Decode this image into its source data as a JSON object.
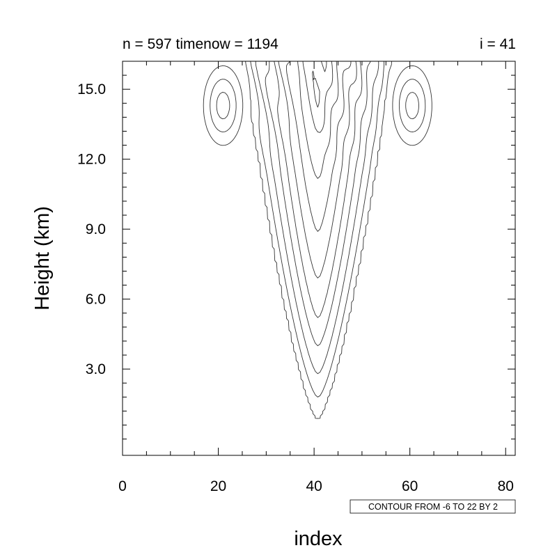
{
  "chart_data": {
    "type": "contour",
    "title_left": "n = 597  timenow = 1194",
    "title_right": "i = 41",
    "xlabel": "index",
    "ylabel": "Height (km)",
    "xlim": [
      0,
      82
    ],
    "ylim": [
      -0.7,
      16.2
    ],
    "x_ticks": [
      0,
      20,
      40,
      60,
      80
    ],
    "x_tick_labels": [
      "0",
      "20",
      "40",
      "60",
      "80"
    ],
    "y_ticks": [
      3,
      6,
      9,
      12,
      15
    ],
    "y_tick_labels": [
      "3.0",
      "6.0",
      "9.0",
      "12.0",
      "15.0"
    ],
    "contour_info": "CONTOUR FROM -6 TO 22 BY 2",
    "contour_levels": {
      "min": -6,
      "max": 22,
      "step": 2
    },
    "negative_contours_dashed": true,
    "grid": false,
    "field_model": {
      "center_index": 40.8,
      "tip_heights_km": [
        0.8,
        1.8,
        2.8,
        4.0,
        5.2,
        6.9,
        8.9,
        11.2,
        13.0,
        14.5
      ],
      "outer_half_width_index": 15.5,
      "inner_half_width_index": 1.2,
      "shape_exponent": 0.7,
      "negative_lobes": [
        {
          "center_index": 21.0,
          "center_height_km": 14.3,
          "min_value": -6
        },
        {
          "center_index": 60.5,
          "center_height_km": 14.3,
          "min_value": -6
        }
      ]
    }
  }
}
